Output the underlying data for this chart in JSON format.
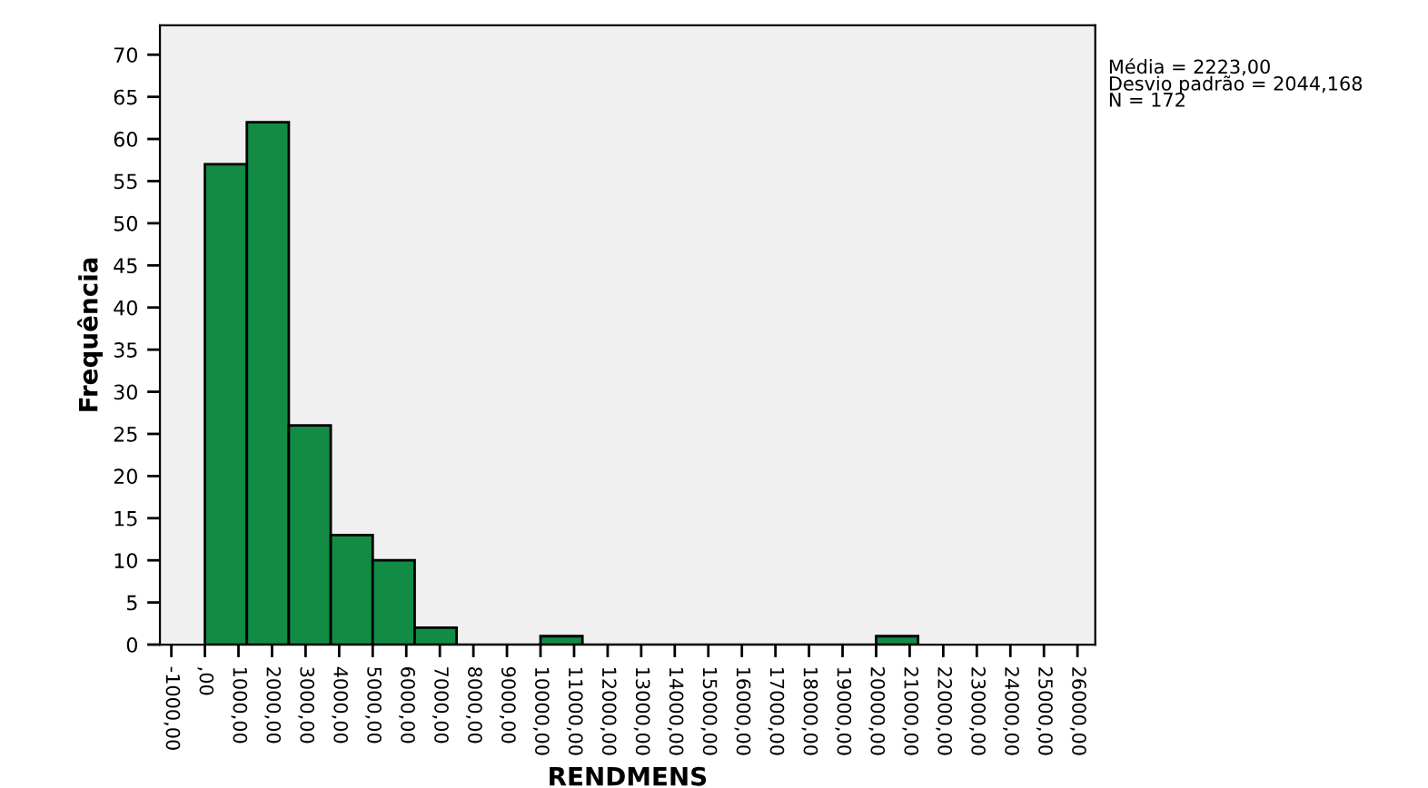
{
  "chart_data": {
    "type": "histogram",
    "xlabel": "RENDMENS",
    "ylabel": "Frequência",
    "bins": [
      0,
      1250,
      2500,
      3750,
      5000,
      6250,
      7500,
      8750,
      10000,
      11250,
      12500,
      13750,
      15000,
      16250,
      17500,
      18750,
      20000,
      21250
    ],
    "values": [
      57,
      62,
      26,
      13,
      10,
      2,
      0,
      0,
      1,
      0,
      0,
      0,
      0,
      0,
      0,
      0,
      1
    ],
    "color": "#128c44",
    "xlim": [
      -1340,
      26530
    ],
    "ylim": [
      0,
      73.5
    ],
    "xticks": [
      {
        "value": -1000,
        "label": "-1000,00"
      },
      {
        "value": 0,
        "label": ",00"
      },
      {
        "value": 1000,
        "label": "1000,00"
      },
      {
        "value": 2000,
        "label": "2000,00"
      },
      {
        "value": 3000,
        "label": "3000,00"
      },
      {
        "value": 4000,
        "label": "4000,00"
      },
      {
        "value": 5000,
        "label": "5000,00"
      },
      {
        "value": 6000,
        "label": "6000,00"
      },
      {
        "value": 7000,
        "label": "7000,00"
      },
      {
        "value": 8000,
        "label": "8000,00"
      },
      {
        "value": 9000,
        "label": "9000,00"
      },
      {
        "value": 10000,
        "label": "10000,00"
      },
      {
        "value": 11000,
        "label": "11000,00"
      },
      {
        "value": 12000,
        "label": "12000,00"
      },
      {
        "value": 13000,
        "label": "13000,00"
      },
      {
        "value": 14000,
        "label": "14000,00"
      },
      {
        "value": 15000,
        "label": "15000,00"
      },
      {
        "value": 16000,
        "label": "16000,00"
      },
      {
        "value": 17000,
        "label": "17000,00"
      },
      {
        "value": 18000,
        "label": "18000,00"
      },
      {
        "value": 19000,
        "label": "19000,00"
      },
      {
        "value": 20000,
        "label": "20000,00"
      },
      {
        "value": 21000,
        "label": "21000,00"
      },
      {
        "value": 22000,
        "label": "22000,00"
      },
      {
        "value": 23000,
        "label": "23000,00"
      },
      {
        "value": 24000,
        "label": "24000,00"
      },
      {
        "value": 25000,
        "label": "25000,00"
      },
      {
        "value": 26000,
        "label": "26000,00"
      }
    ],
    "yticks": [
      0,
      5,
      10,
      15,
      20,
      25,
      30,
      35,
      40,
      45,
      50,
      55,
      60,
      65,
      70
    ],
    "grid": false,
    "annotations": [
      "Média = 2223,00",
      "Desvio padrão = 2044,168",
      "N = 172"
    ]
  }
}
